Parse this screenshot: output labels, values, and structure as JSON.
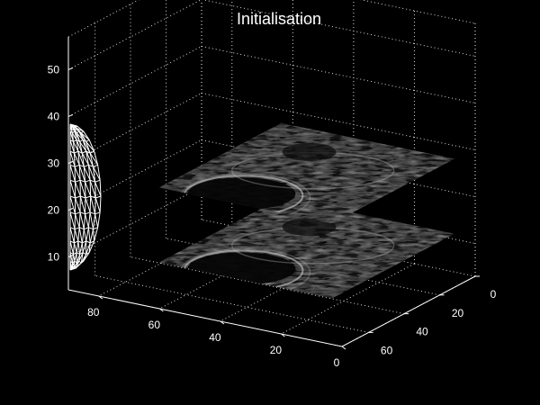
{
  "chart_data": {
    "type": "3d-volume-slices",
    "title": "Initialisation",
    "xlabel": "",
    "ylabel": "",
    "zlabel": "",
    "grid": true,
    "background": "#000000",
    "axis_color": "#ffffff",
    "x_axis": {
      "ticks": [
        0,
        20,
        40,
        60,
        80
      ],
      "range": [
        0,
        90
      ]
    },
    "y_axis": {
      "ticks": [
        0,
        20,
        40,
        60
      ],
      "range": [
        0,
        75
      ]
    },
    "z_axis": {
      "ticks": [
        10,
        20,
        30,
        40,
        50
      ],
      "range": [
        3,
        57
      ]
    },
    "slices": [
      {
        "name": "",
        "z": 12
      },
      {
        "name": "",
        "z": 28
      }
    ],
    "mesh": {
      "name": "",
      "color": "#ffffff",
      "style": "wireframe"
    }
  }
}
